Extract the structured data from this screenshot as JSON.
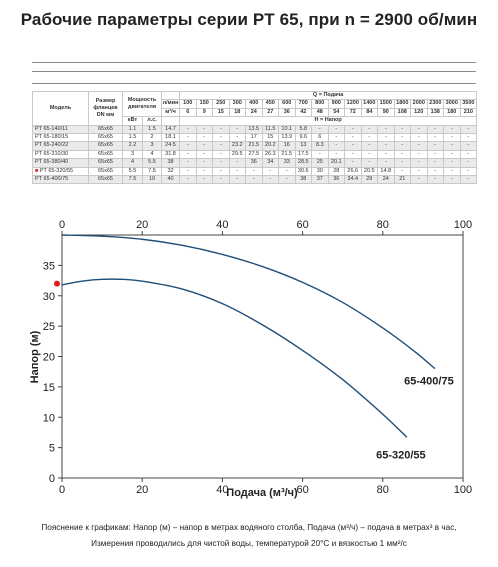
{
  "title": "Рабочие параметры серии PT 65, при n = 2900 об/мин",
  "table": {
    "col_model": "Модель",
    "col_flange": "Размер фланцев DN мм",
    "col_power": "Мощность двигателя",
    "power_units": [
      "кВт",
      "л.с."
    ],
    "q_caption": "Q = Подача",
    "h_caption": "H = Напор",
    "q_unit_lmin": "л/мин",
    "q_unit_m3h": "м³/ч",
    "q_lmin": [
      "0",
      "100",
      "150",
      "250",
      "300",
      "400",
      "450",
      "600",
      "700",
      "800",
      "900",
      "1200",
      "1400",
      "1500",
      "1800",
      "2000",
      "2300",
      "3000",
      "3500"
    ],
    "q_m3h": [
      "0",
      "6",
      "9",
      "15",
      "18",
      "24",
      "27",
      "36",
      "42",
      "48",
      "54",
      "72",
      "84",
      "90",
      "108",
      "120",
      "138",
      "180",
      "210"
    ],
    "rows": [
      {
        "model": "PT 65-140/11",
        "dn": "65x65",
        "kw": "1.1",
        "hp": "1.5",
        "h": [
          "14.7",
          "-",
          "-",
          "-",
          "-",
          "13.5",
          "11.5",
          "10.1",
          "5.8",
          "-",
          "-",
          "-",
          "-",
          "-",
          "-",
          "-",
          "-",
          "-",
          "-"
        ]
      },
      {
        "model": "PT 65-180/15",
        "dn": "65x65",
        "kw": "1.5",
        "hp": "2",
        "h": [
          "18.1",
          "-",
          "-",
          "-",
          "-",
          "17",
          "15",
          "13.9",
          "9.6",
          "6",
          "-",
          "-",
          "-",
          "-",
          "-",
          "-",
          "-",
          "-",
          "-"
        ]
      },
      {
        "model": "PT 65-240/22",
        "dn": "65x65",
        "kw": "2.2",
        "hp": "3",
        "h": [
          "24.5",
          "-",
          "-",
          "-",
          "23.2",
          "21.5",
          "20.2",
          "16",
          "13",
          "8.3",
          "-",
          "-",
          "-",
          "-",
          "-",
          "-",
          "-",
          "-",
          "-"
        ]
      },
      {
        "model": "PT 65-310/30",
        "dn": "65x65",
        "kw": "3",
        "hp": "4",
        "h": [
          "31.8",
          "-",
          "-",
          "-",
          "29.5",
          "27.5",
          "26.3",
          "21.5",
          "17.5",
          "-",
          "-",
          "-",
          "-",
          "-",
          "-",
          "-",
          "-",
          "-",
          "-"
        ]
      },
      {
        "model": "PT 65-380/40",
        "dn": "65x65",
        "kw": "4",
        "hp": "5.5",
        "h": [
          "38",
          "-",
          "-",
          "-",
          "-",
          "36",
          "34",
          "33",
          "28.5",
          "25",
          "20.1",
          "-",
          "-",
          "-",
          "-",
          "-",
          "-",
          "-",
          "-"
        ]
      },
      {
        "model": "PT 65-320/55",
        "dn": "65x65",
        "kw": "5.5",
        "hp": "7.5",
        "h": [
          "32",
          "-",
          "-",
          "-",
          "-",
          "-",
          "-",
          "-",
          "30.6",
          "30",
          "28",
          "26.6",
          "20.5",
          "14.8",
          "-",
          "-",
          "-",
          "-",
          "-"
        ]
      },
      {
        "model": "PT 65-400/75",
        "dn": "65x65",
        "kw": "7.5",
        "hp": "10",
        "h": [
          "40",
          "-",
          "-",
          "-",
          "-",
          "-",
          "-",
          "-",
          "38",
          "37",
          "36",
          "34.4",
          "29",
          "24",
          "21",
          "-",
          "-",
          "-",
          "-"
        ]
      }
    ],
    "highlight_row": 5,
    "marker_color": "#e01d1d"
  },
  "chart_data": {
    "type": "line",
    "xlabel": "Подача (м³/ч)",
    "ylabel": "Напор (м)",
    "xlim": [
      0,
      100
    ],
    "ylim": [
      0,
      40
    ],
    "xticks": [
      0,
      20,
      40,
      60,
      80,
      100
    ],
    "yticks": [
      0,
      5,
      10,
      15,
      20,
      25,
      30,
      35
    ],
    "grid": false,
    "curve_color": "#1f4e79",
    "marker_color": "#e01d1d",
    "marker_point": {
      "x": 0,
      "y": 32
    },
    "series": [
      {
        "name": "65-400/75",
        "x": [
          0,
          10,
          20,
          30,
          40,
          50,
          60,
          70,
          80,
          88,
          93
        ],
        "y": [
          40,
          39.8,
          39.3,
          38.3,
          36.8,
          34.8,
          32.2,
          28.9,
          24.7,
          20.8,
          18
        ]
      },
      {
        "name": "65-320/55",
        "x": [
          0,
          5,
          10,
          15,
          20,
          30,
          40,
          50,
          60,
          70,
          80,
          86
        ],
        "y": [
          31.8,
          32.4,
          32.7,
          32.7,
          32.4,
          31.1,
          28.7,
          25.2,
          21,
          16.2,
          10.5,
          6.7
        ]
      }
    ]
  },
  "note": {
    "line1": "Пояснение к графикам: Напор (м) – напор в метрах водяного столба, Подача (м³/ч) – подача в метрах³ в час,",
    "line2": "Измерения проводились для чистой воды, температурой 20°C и вязкостью 1 мм²/с"
  }
}
